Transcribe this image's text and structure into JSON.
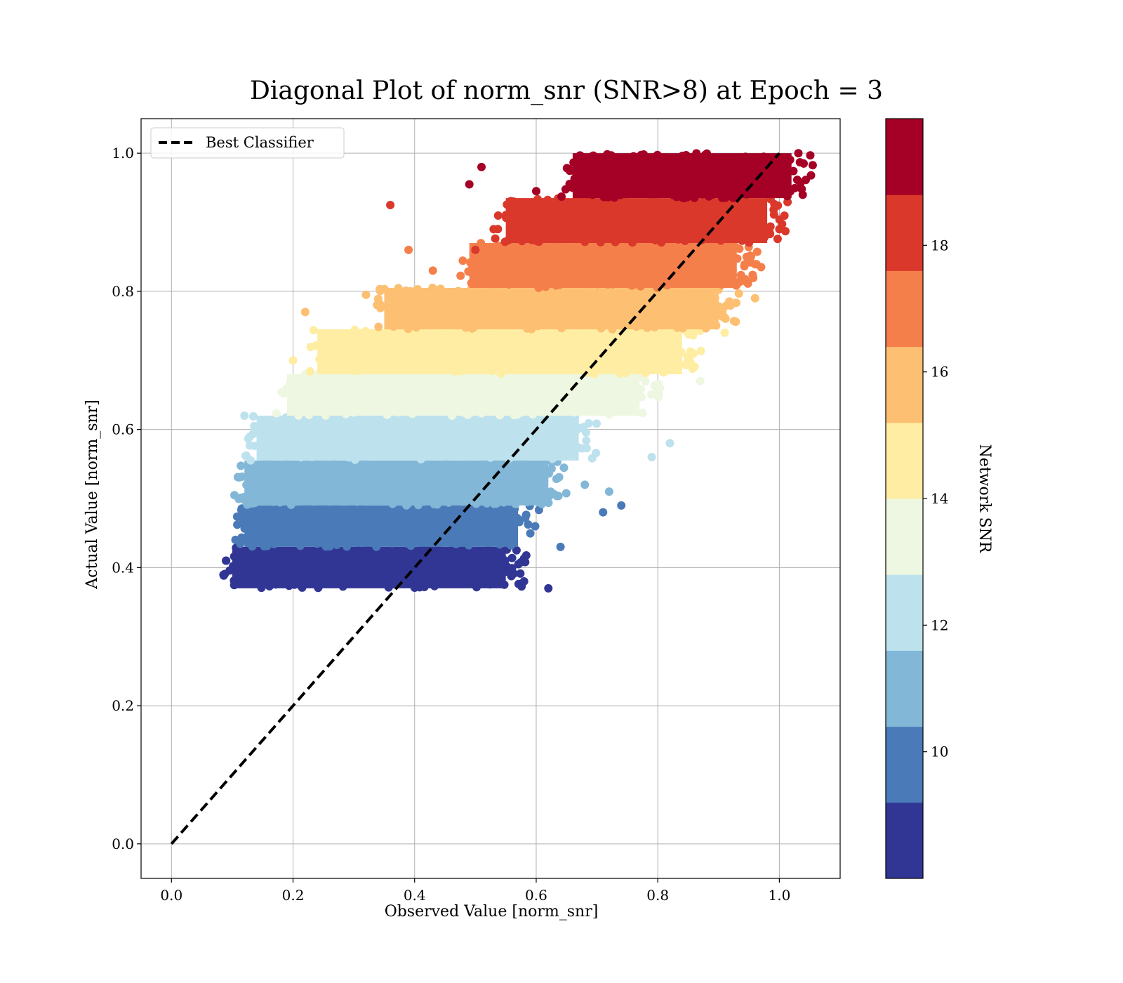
{
  "chart_data": {
    "type": "scatter",
    "title": "Diagonal Plot of norm_snr (SNR>8) at Epoch = 3",
    "xlabel": "Observed Value [norm_snr]",
    "ylabel": "Actual Value [norm_snr]",
    "xlim": [
      -0.05,
      1.1
    ],
    "ylim": [
      -0.05,
      1.05
    ],
    "x_ticks": [
      0.0,
      0.2,
      0.4,
      0.6,
      0.8,
      1.0
    ],
    "y_ticks": [
      0.0,
      0.2,
      0.4,
      0.6,
      0.8,
      1.0
    ],
    "x_tick_labels": [
      "0.0",
      "0.2",
      "0.4",
      "0.6",
      "0.8",
      "1.0"
    ],
    "y_tick_labels": [
      "0.0",
      "0.2",
      "0.4",
      "0.6",
      "0.8",
      "1.0"
    ],
    "grid": true,
    "legend": {
      "placement": "upper-left",
      "entries": [
        "Best Classifier"
      ]
    },
    "reference_line": {
      "name": "Best Classifier",
      "style": "dashed",
      "color": "#000000",
      "x": [
        0,
        1
      ],
      "y": [
        0,
        1
      ]
    },
    "colorbar": {
      "label": "Network SNR",
      "range": [
        8,
        20
      ],
      "ticks": [
        10,
        12,
        14,
        16,
        18
      ],
      "tick_labels": [
        "10",
        "12",
        "14",
        "16",
        "18"
      ],
      "bands": [
        {
          "from": 8,
          "to": 9.2,
          "color": "#313695"
        },
        {
          "from": 9.2,
          "to": 10.4,
          "color": "#4a7ab7"
        },
        {
          "from": 10.4,
          "to": 11.6,
          "color": "#82b7d7"
        },
        {
          "from": 11.6,
          "to": 12.8,
          "color": "#bde2ee"
        },
        {
          "from": 12.8,
          "to": 14.0,
          "color": "#eef7e1"
        },
        {
          "from": 14.0,
          "to": 15.2,
          "color": "#feeda2"
        },
        {
          "from": 15.2,
          "to": 16.4,
          "color": "#fdbf71"
        },
        {
          "from": 16.4,
          "to": 17.6,
          "color": "#f57f4b"
        },
        {
          "from": 17.6,
          "to": 18.8,
          "color": "#da382b"
        },
        {
          "from": 18.8,
          "to": 20.0,
          "color": "#a50026"
        }
      ]
    },
    "series": [
      {
        "color": "#313695",
        "y_range": [
          0.37,
          0.43
        ],
        "x_range": [
          0.08,
          0.58
        ],
        "outliers": [
          [
            0.62,
            0.37
          ],
          [
            0.58,
            0.38
          ],
          [
            0.09,
            0.41
          ]
        ]
      },
      {
        "color": "#4a7ab7",
        "y_range": [
          0.43,
          0.49
        ],
        "x_range": [
          0.1,
          0.6
        ],
        "outliers": [
          [
            0.71,
            0.48
          ],
          [
            0.74,
            0.49
          ],
          [
            0.64,
            0.43
          ]
        ]
      },
      {
        "color": "#82b7d7",
        "y_range": [
          0.49,
          0.555
        ],
        "x_range": [
          0.1,
          0.65
        ],
        "outliers": [
          [
            0.72,
            0.51
          ],
          [
            0.68,
            0.52
          ]
        ]
      },
      {
        "color": "#bde2ee",
        "y_range": [
          0.555,
          0.62
        ],
        "x_range": [
          0.12,
          0.7
        ],
        "outliers": [
          [
            0.82,
            0.58
          ],
          [
            0.79,
            0.56
          ],
          [
            0.12,
            0.62
          ]
        ]
      },
      {
        "color": "#eef7e1",
        "y_range": [
          0.62,
          0.68
        ],
        "x_range": [
          0.17,
          0.8
        ],
        "outliers": [
          [
            0.19,
            0.66
          ],
          [
            0.22,
            0.68
          ],
          [
            0.87,
            0.67
          ]
        ]
      },
      {
        "color": "#feeda2",
        "y_range": [
          0.68,
          0.745
        ],
        "x_range": [
          0.22,
          0.87
        ],
        "outliers": [
          [
            0.2,
            0.7
          ],
          [
            0.91,
            0.74
          ]
        ]
      },
      {
        "color": "#fdbf71",
        "y_range": [
          0.745,
          0.805
        ],
        "x_range": [
          0.33,
          0.93
        ],
        "outliers": [
          [
            0.22,
            0.77
          ],
          [
            0.32,
            0.795
          ],
          [
            0.96,
            0.79
          ]
        ]
      },
      {
        "color": "#f57f4b",
        "y_range": [
          0.805,
          0.87
        ],
        "x_range": [
          0.47,
          0.96
        ],
        "outliers": [
          [
            0.39,
            0.86
          ],
          [
            0.43,
            0.83
          ],
          [
            0.97,
            0.835
          ]
        ]
      },
      {
        "color": "#da382b",
        "y_range": [
          0.87,
          0.935
        ],
        "x_range": [
          0.53,
          1.01
        ],
        "outliers": [
          [
            0.36,
            0.925
          ],
          [
            0.5,
            0.86
          ],
          [
            0.53,
            0.89
          ],
          [
            1.0,
            0.89
          ]
        ]
      },
      {
        "color": "#a50026",
        "y_range": [
          0.935,
          1.0
        ],
        "x_range": [
          0.64,
          1.05
        ],
        "outliers": [
          [
            0.51,
            0.98
          ],
          [
            0.49,
            0.955
          ],
          [
            0.6,
            0.945
          ],
          [
            1.04,
            0.985
          ]
        ]
      }
    ]
  }
}
